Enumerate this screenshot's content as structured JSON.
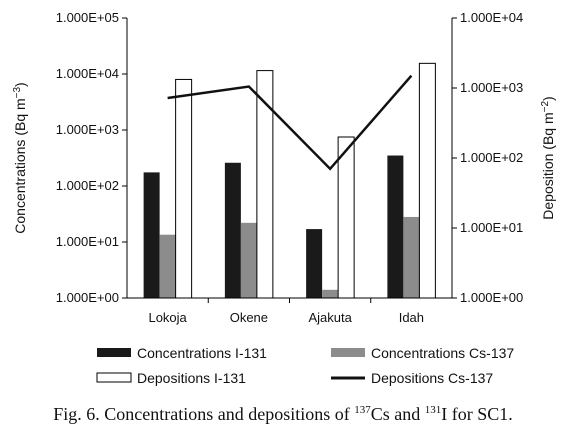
{
  "chart_data": {
    "type": "bar",
    "categories": [
      "Lokoja",
      "Okene",
      "Ajakuta",
      "Idah"
    ],
    "y_left": {
      "label_prefix": "Concentrations (Bq m",
      "label_exp": "−3",
      "label_suffix": ")",
      "scale": "log",
      "range": [
        1,
        100000
      ],
      "ticks": [
        "1.000E+00",
        "1.000E+01",
        "1.000E+02",
        "1.000E+03",
        "1.000E+04",
        "1.000E+05"
      ]
    },
    "y_right": {
      "label_prefix": "Deposition (Bq m",
      "label_exp": "−2",
      "label_suffix": ")",
      "scale": "log",
      "range": [
        1,
        10000
      ],
      "ticks": [
        "1.000E+00",
        "1.000E+01",
        "1.000E+02",
        "1.000E+03",
        "1.000E+04"
      ]
    },
    "series": [
      {
        "name": "Concentrations I-131",
        "kind": "bar",
        "axis": "left",
        "color": "#1a1a1a",
        "values": [
          175,
          260,
          17,
          350
        ]
      },
      {
        "name": "Concentrations Cs-137",
        "kind": "bar",
        "axis": "left",
        "color": "#8c8c8c",
        "values": [
          13.5,
          22,
          1.4,
          28
        ]
      },
      {
        "name": "Depositions I-131",
        "kind": "bar",
        "axis": "left",
        "color": "#ffffff",
        "values": [
          8000,
          11500,
          750,
          15500
        ]
      },
      {
        "name": "Depositions Cs-137",
        "kind": "line",
        "axis": "right",
        "color": "#111111",
        "values": [
          720,
          1050,
          70,
          1500
        ]
      }
    ],
    "grid": false,
    "legend_position": "bottom"
  },
  "caption": {
    "prefix": "Fig. 6. Concentrations and depositions of ",
    "sup1": "137",
    "mid1": "Cs and ",
    "sup2": "131",
    "mid2": "I for SC1."
  }
}
